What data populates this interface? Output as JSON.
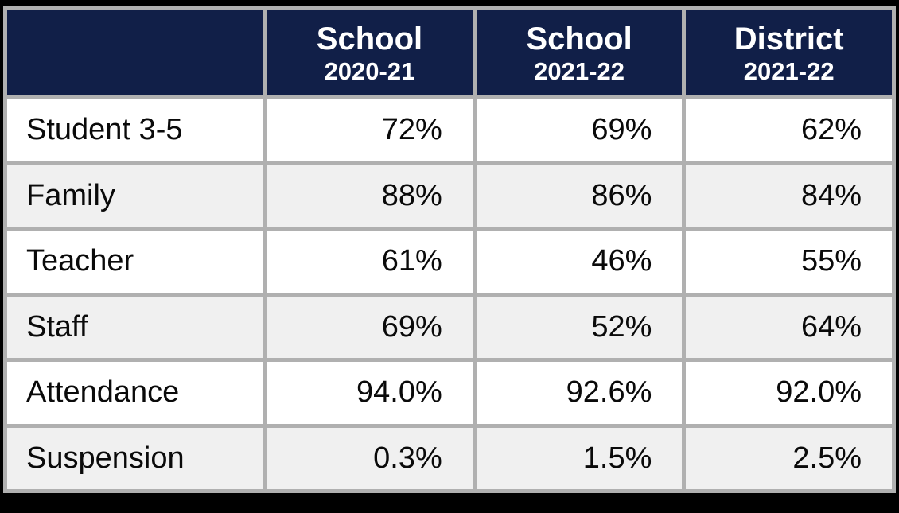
{
  "table": {
    "columns": [
      {
        "label": "School",
        "sublabel": "2020-21"
      },
      {
        "label": "School",
        "sublabel": "2021-22"
      },
      {
        "label": "District",
        "sublabel": "2021-22"
      }
    ],
    "rows": [
      {
        "label": "Student 3-5",
        "values": [
          "72%",
          "69%",
          "62%"
        ]
      },
      {
        "label": "Family",
        "values": [
          "88%",
          "86%",
          "84%"
        ]
      },
      {
        "label": "Teacher",
        "values": [
          "61%",
          "46%",
          "55%"
        ]
      },
      {
        "label": "Staff",
        "values": [
          "69%",
          "52%",
          "64%"
        ]
      },
      {
        "label": "Attendance",
        "values": [
          "94.0%",
          "92.6%",
          "92.0%"
        ]
      },
      {
        "label": "Suspension",
        "values": [
          "0.3%",
          "1.5%",
          "2.5%"
        ]
      }
    ],
    "colors": {
      "header_bg": "#111f48",
      "header_text": "#ffffff",
      "border": "#b0b0b0",
      "row_bg_odd": "#ffffff",
      "row_bg_even": "#f0f0f0",
      "body_text": "#0a0a0a",
      "frame": "#000000"
    }
  },
  "chart_data": {
    "type": "table",
    "columns": [
      "",
      "School 2020-21",
      "School 2021-22",
      "District 2021-22"
    ],
    "rows": [
      [
        "Student 3-5",
        "72%",
        "69%",
        "62%"
      ],
      [
        "Family",
        "88%",
        "86%",
        "84%"
      ],
      [
        "Teacher",
        "61%",
        "46%",
        "55%"
      ],
      [
        "Staff",
        "69%",
        "52%",
        "64%"
      ],
      [
        "Attendance",
        "94.0%",
        "92.6%",
        "92.0%"
      ],
      [
        "Suspension",
        "0.3%",
        "1.5%",
        "2.5%"
      ]
    ],
    "series": [
      {
        "name": "School 2020-21",
        "values": [
          72,
          88,
          61,
          69,
          94.0,
          0.3
        ]
      },
      {
        "name": "School 2021-22",
        "values": [
          69,
          86,
          46,
          52,
          92.6,
          1.5
        ]
      },
      {
        "name": "District 2021-22",
        "values": [
          62,
          84,
          55,
          64,
          92.0,
          2.5
        ]
      }
    ],
    "categories": [
      "Student 3-5",
      "Family",
      "Teacher",
      "Staff",
      "Attendance",
      "Suspension"
    ],
    "title": "",
    "legend_position": "none",
    "grid": false
  }
}
